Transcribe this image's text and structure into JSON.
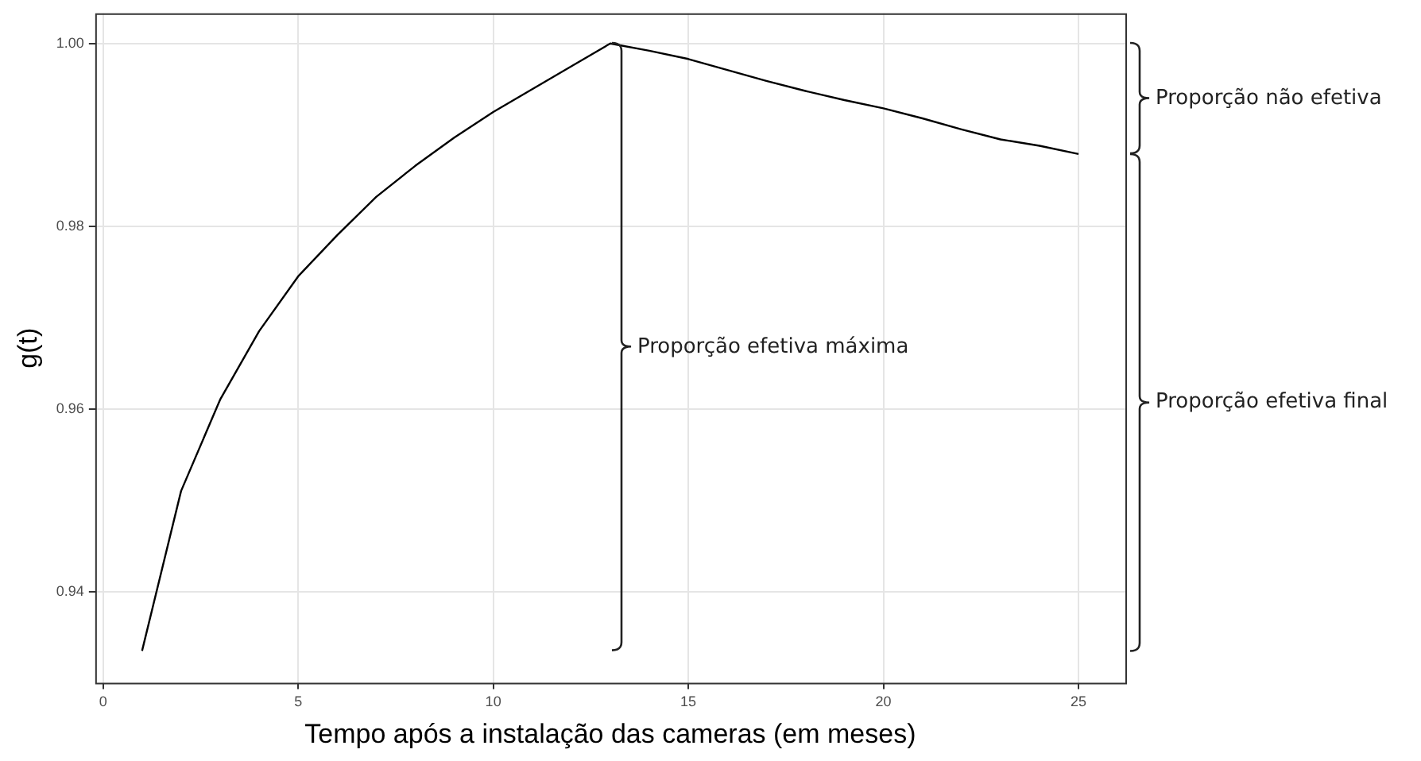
{
  "chart_data": {
    "type": "line",
    "xlabel": "Tempo após a instalação das cameras (em meses)",
    "ylabel": "g(t)",
    "x": [
      1,
      2,
      3,
      4,
      5,
      6,
      7,
      8,
      9,
      10,
      11,
      12,
      13,
      14,
      15,
      16,
      17,
      18,
      19,
      20,
      21,
      22,
      23,
      24,
      25
    ],
    "series": [
      {
        "color": "#000000",
        "values": [
          0.9335,
          0.951,
          0.961,
          0.9685,
          0.9745,
          0.979,
          0.9832,
          0.9866,
          0.9897,
          0.9925,
          0.995,
          0.9975,
          1.0,
          0.9992,
          0.9983,
          0.9971,
          0.9959,
          0.9948,
          0.9938,
          0.9929,
          0.9918,
          0.9906,
          0.9895,
          0.9888,
          0.9879
        ]
      }
    ],
    "xlim": [
      -0.2,
      26.2
    ],
    "xticks": [
      0,
      5,
      10,
      15,
      20,
      25
    ],
    "ylim": [
      0.93,
      1.0033
    ],
    "yticks": [
      0.94,
      0.96,
      0.98,
      {
        "value": 1,
        "label": "1.00"
      }
    ],
    "grid": true,
    "legend": false,
    "marker": "none",
    "line_style": "solid",
    "annotations": [
      "Proporção efetiva máxima",
      "Proporção não efetiva",
      "Proporção efetiva final"
    ]
  }
}
